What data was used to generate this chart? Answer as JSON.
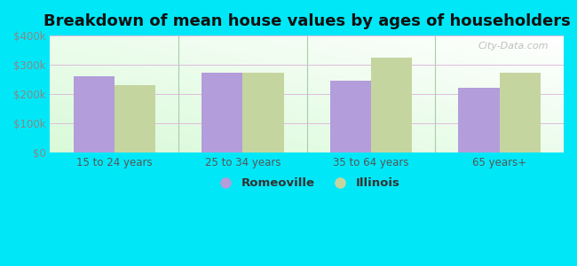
{
  "title": "Breakdown of mean house values by ages of householders",
  "categories": [
    "15 to 24 years",
    "25 to 34 years",
    "35 to 64 years",
    "65 years+"
  ],
  "romeoville": [
    262000,
    272000,
    245000,
    222000
  ],
  "illinois": [
    232000,
    272000,
    325000,
    272000
  ],
  "bar_color_romeoville": "#b39ddb",
  "bar_color_illinois": "#c5d5a0",
  "background_outer": "#00e8f8",
  "ylim": [
    0,
    400000
  ],
  "yticks": [
    0,
    100000,
    200000,
    300000,
    400000
  ],
  "ytick_labels": [
    "$0",
    "$100k",
    "$200k",
    "$300k",
    "$400k"
  ],
  "legend_romeoville": "Romeoville",
  "legend_illinois": "Illinois",
  "bar_width": 0.32,
  "title_fontsize": 13,
  "tick_fontsize": 8.5,
  "legend_fontsize": 9.5,
  "watermark": "City-Data.com"
}
